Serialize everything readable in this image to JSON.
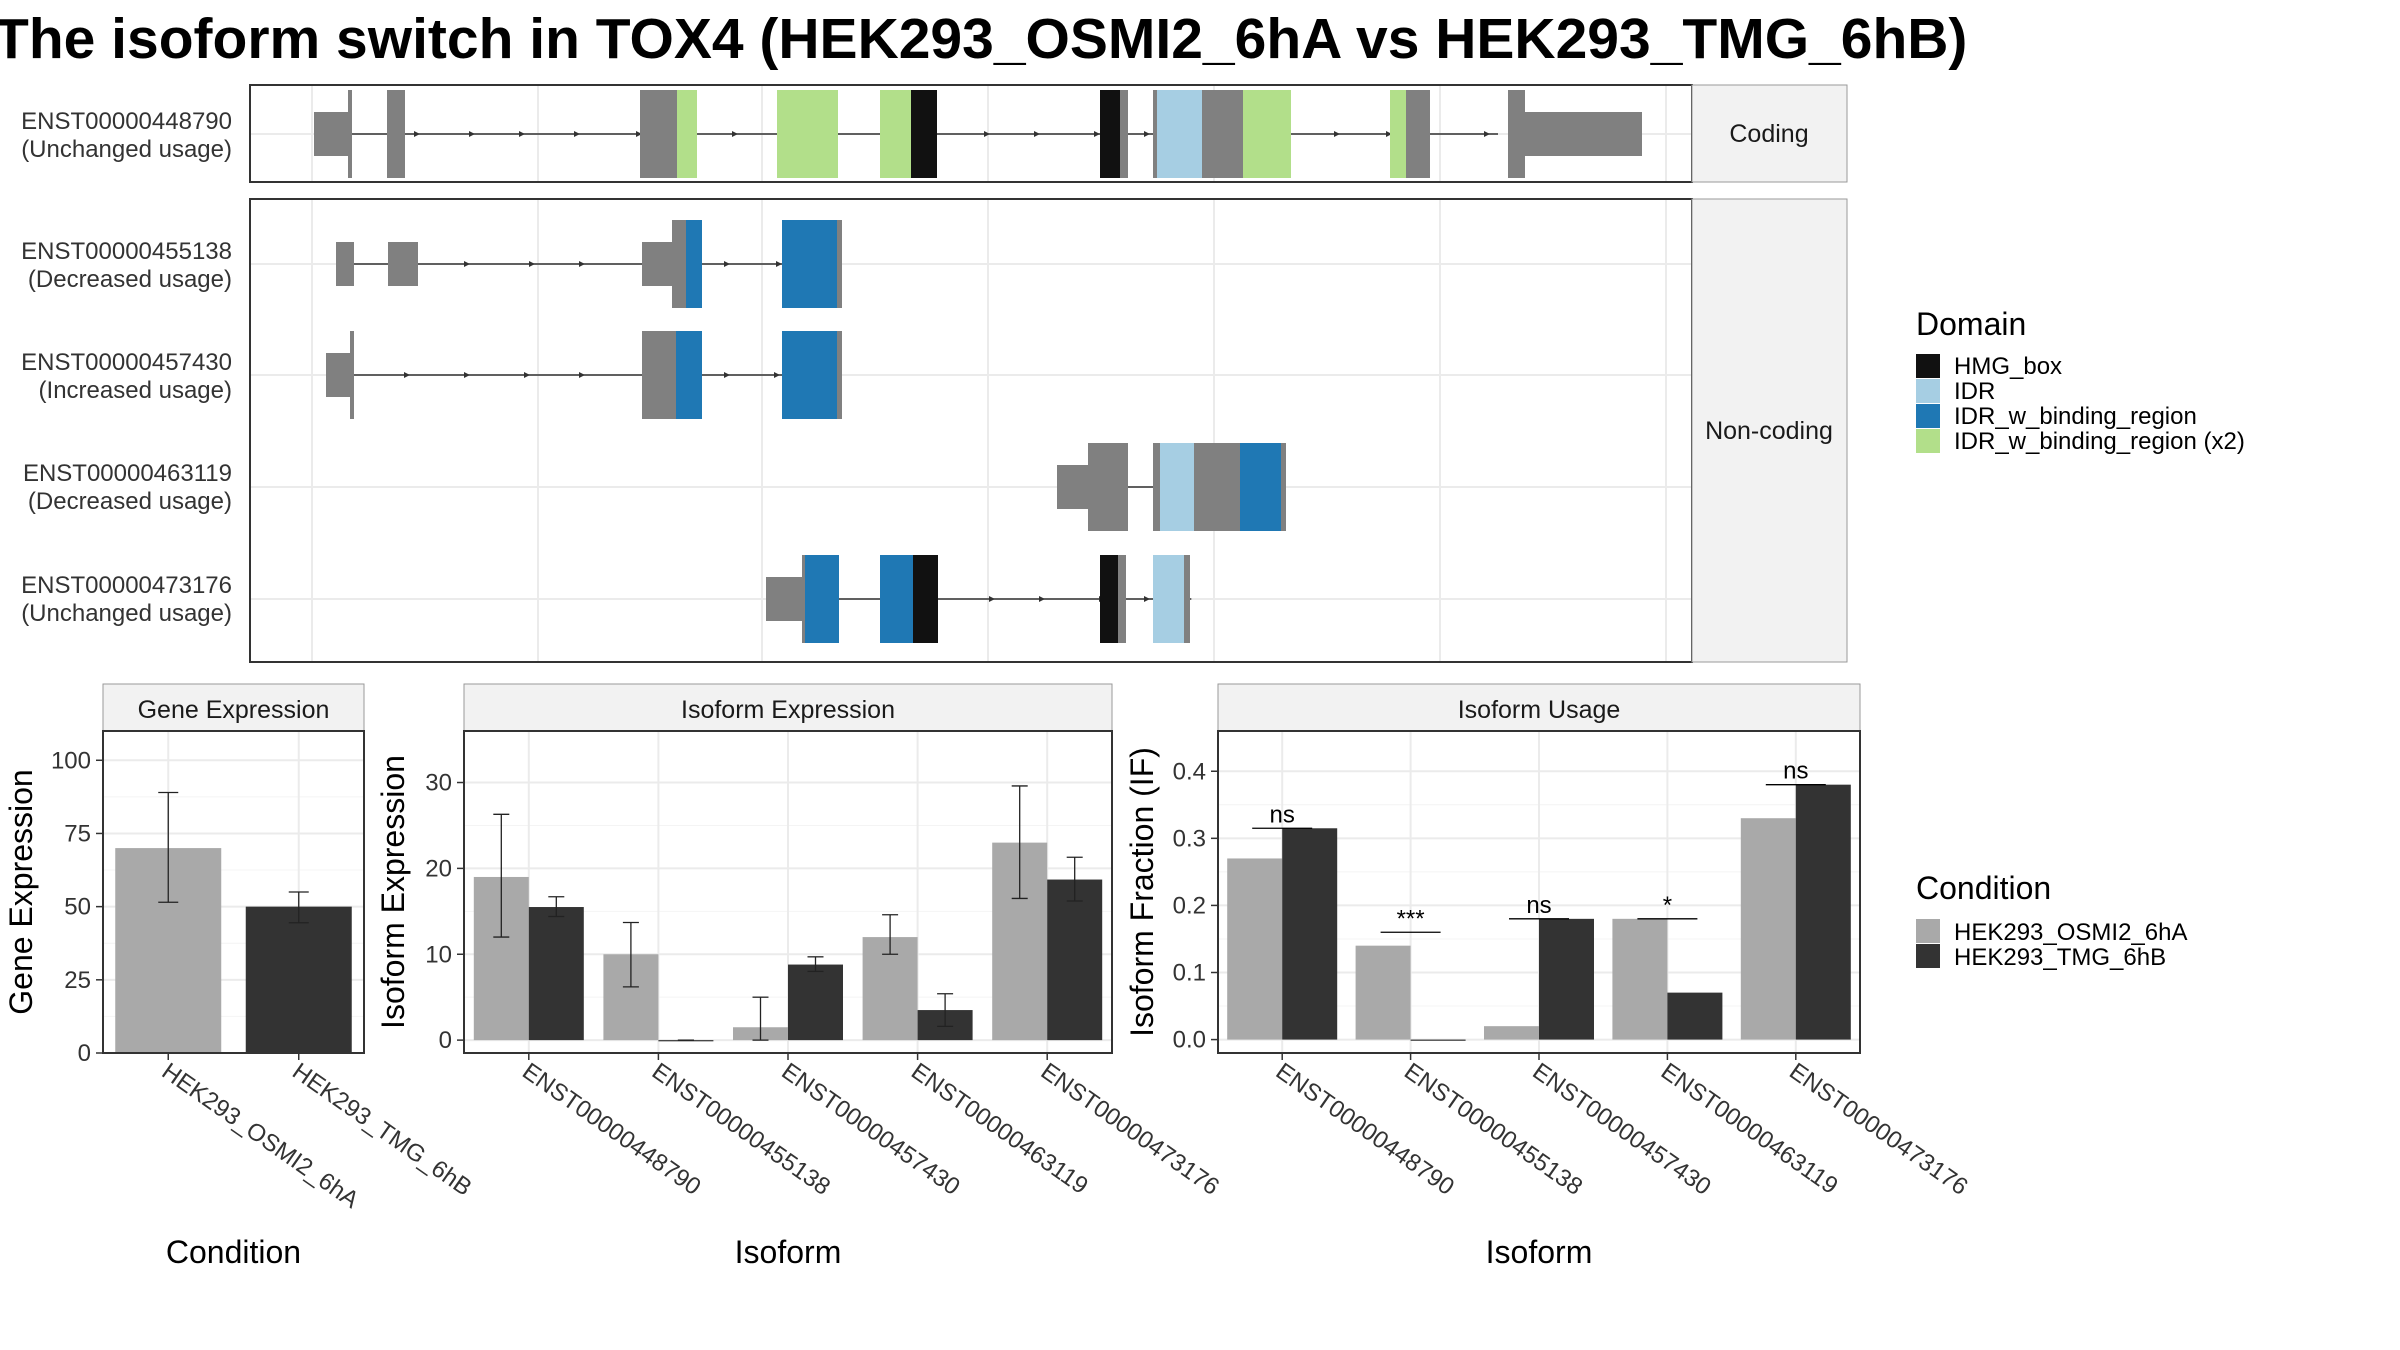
{
  "title": "The isoform switch in TOX4 (HEK293_OSMI2_6hA vs HEK293_TMG_6hB)",
  "colors": {
    "HMG_box": "#111111",
    "IDR": "#a6cee3",
    "IDR_w_binding_region": "#1f78b4",
    "IDR_w_binding_region (x2)": "#b2df8a",
    "exon": "#808080",
    "cond1": "#a9a9a9",
    "cond2": "#333333"
  },
  "transcripts": {
    "coding_strip": "Coding",
    "noncoding_strip": "Non-coding",
    "rows": [
      {
        "id": "ENST00000448790",
        "usage": "(Unchanged usage)",
        "group": "coding"
      },
      {
        "id": "ENST00000455138",
        "usage": "(Decreased usage)",
        "group": "noncoding"
      },
      {
        "id": "ENST00000457430",
        "usage": "(Increased usage)",
        "group": "noncoding"
      },
      {
        "id": "ENST00000463119",
        "usage": "(Decreased usage)",
        "group": "noncoding"
      },
      {
        "id": "ENST00000473176",
        "usage": "(Unchanged usage)",
        "group": "noncoding"
      }
    ]
  },
  "legend_domain": {
    "title": "Domain",
    "items": [
      "HMG_box",
      "IDR",
      "IDR_w_binding_region",
      "IDR_w_binding_region (x2)"
    ]
  },
  "legend_condition": {
    "title": "Condition",
    "items": [
      "HEK293_OSMI2_6hA",
      "HEK293_TMG_6hB"
    ]
  },
  "chart_data": [
    {
      "type": "bar",
      "title": "Gene Expression",
      "xlabel": "Condition",
      "ylabel": "Gene Expression",
      "categories": [
        "HEK293_OSMI2_6hA",
        "HEK293_TMG_6hB"
      ],
      "values": [
        70,
        50
      ],
      "error_low": [
        51.5,
        44.5
      ],
      "error_high": [
        89,
        55
      ],
      "ylim": [
        0,
        110
      ],
      "yticks": [
        0,
        25,
        50,
        75,
        100
      ]
    },
    {
      "type": "bar",
      "title": "Isoform Expression",
      "xlabel": "Isoform",
      "ylabel": "Isoform Expression",
      "categories": [
        "ENST00000448790",
        "ENST00000455138",
        "ENST00000457430",
        "ENST00000463119",
        "ENST00000473176"
      ],
      "series": [
        {
          "name": "HEK293_OSMI2_6hA",
          "values": [
            19,
            10,
            1.5,
            12,
            23
          ],
          "error_low": [
            12,
            6.2,
            0,
            10,
            16.5
          ],
          "error_high": [
            26.3,
            13.7,
            5,
            14.6,
            29.6
          ]
        },
        {
          "name": "HEK293_TMG_6hB",
          "values": [
            15.5,
            0,
            8.8,
            3.5,
            18.7
          ],
          "error_low": [
            14.4,
            0,
            8,
            1.6,
            16.2
          ],
          "error_high": [
            16.7,
            0,
            9.7,
            5.4,
            21.3
          ]
        }
      ],
      "ylim": [
        -1.5,
        36
      ],
      "yticks": [
        0,
        10,
        20,
        30
      ]
    },
    {
      "type": "bar",
      "title": "Isoform Usage",
      "xlabel": "Isoform",
      "ylabel": "Isoform Fraction (IF)",
      "categories": [
        "ENST00000448790",
        "ENST00000455138",
        "ENST00000457430",
        "ENST00000463119",
        "ENST00000473176"
      ],
      "series": [
        {
          "name": "HEK293_OSMI2_6hA",
          "values": [
            0.27,
            0.14,
            0.02,
            0.18,
            0.33
          ]
        },
        {
          "name": "HEK293_TMG_6hB",
          "values": [
            0.315,
            0,
            0.18,
            0.07,
            0.38
          ]
        }
      ],
      "significance": [
        "ns",
        "***",
        "ns",
        "*",
        "ns"
      ],
      "ylim": [
        -0.02,
        0.46
      ],
      "yticks": [
        0.0,
        0.1,
        0.2,
        0.3,
        0.4
      ],
      "ytick_labels": [
        "0.0",
        "0.1",
        "0.2",
        "0.3",
        "0.4"
      ]
    }
  ]
}
